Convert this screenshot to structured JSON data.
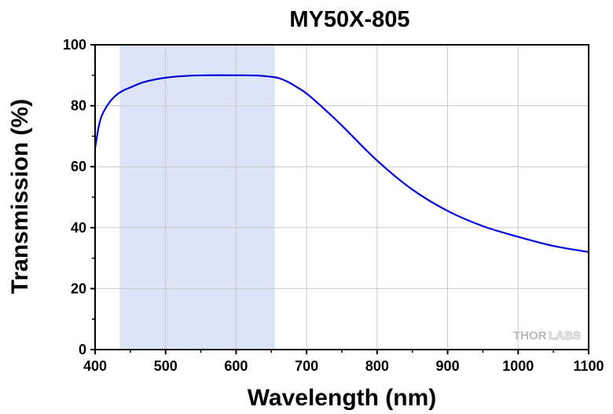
{
  "chart_data": {
    "type": "line",
    "title": "MY50X-805",
    "xlabel": "Wavelength (nm)",
    "ylabel": "Transmission (%)",
    "xlim": [
      400,
      1100
    ],
    "ylim": [
      0,
      100
    ],
    "xticks": [
      400,
      500,
      600,
      700,
      800,
      900,
      1000,
      1100
    ],
    "yticks": [
      0,
      20,
      40,
      60,
      80,
      100
    ],
    "grid": true,
    "shaded_region": {
      "x_start": 435,
      "x_end": 655,
      "color": "#dce5f7"
    },
    "series": [
      {
        "color": "#0000dd",
        "x": [
          400,
          405,
          410,
          420,
          430,
          440,
          450,
          470,
          500,
          530,
          560,
          600,
          630,
          650,
          660,
          670,
          680,
          700,
          720,
          750,
          800,
          850,
          900,
          950,
          1000,
          1050,
          1100
        ],
        "y": [
          66,
          73,
          77,
          81,
          83.5,
          85,
          86,
          87.8,
          89.2,
          89.8,
          90,
          90,
          89.9,
          89.5,
          89.1,
          88.2,
          87,
          84,
          80,
          73.5,
          62,
          52.5,
          45.5,
          40.5,
          37,
          34,
          32
        ]
      }
    ]
  },
  "watermark": {
    "part1": "THOR",
    "part2": "LABS"
  }
}
